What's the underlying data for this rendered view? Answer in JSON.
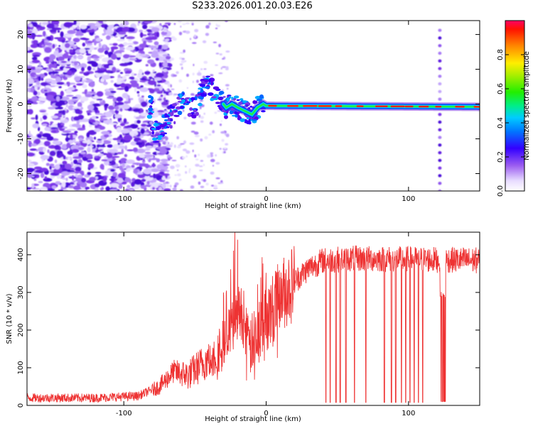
{
  "title": "S233.2026.001.20.03.E26",
  "chart_data": [
    {
      "type": "heatmap",
      "title": "S233.2026.001.20.03.E26",
      "xlabel": "Height of straight line (km)",
      "ylabel": "Frequency (Hz)",
      "xlim": [
        -168,
        150
      ],
      "ylim": [
        -25,
        24
      ],
      "xticks": [
        -100,
        0,
        100
      ],
      "yticks": [
        -20,
        -10,
        0,
        10,
        20
      ],
      "colorbar": {
        "label": "Normalized spectral amplitude",
        "range": [
          0.0,
          1.0
        ],
        "ticks": [
          "0.0",
          "0.2",
          "0.4",
          "0.6",
          "0.8"
        ]
      },
      "ridge": [
        {
          "x": -80,
          "y": -9
        },
        {
          "x": -72,
          "y": -6
        },
        {
          "x": -65,
          "y": -3
        },
        {
          "x": -58,
          "y": 1
        },
        {
          "x": -50,
          "y": -2
        },
        {
          "x": -45,
          "y": 4
        },
        {
          "x": -40,
          "y": 6
        },
        {
          "x": -36,
          "y": 2
        },
        {
          "x": -32,
          "y": 1
        },
        {
          "x": -28,
          "y": -1
        },
        {
          "x": -24,
          "y": 0
        },
        {
          "x": -20,
          "y": -1
        },
        {
          "x": -15,
          "y": -2
        },
        {
          "x": -10,
          "y": -3
        },
        {
          "x": -6,
          "y": -1
        },
        {
          "x": -2,
          "y": 0
        },
        {
          "x": 0,
          "y": -0.5
        },
        {
          "x": 150,
          "y": -0.8
        }
      ]
    },
    {
      "type": "line",
      "xlabel": "Height of straight line (km)",
      "ylabel": "SNR (10 * v/v)",
      "xlim": [
        -168,
        150
      ],
      "ylim": [
        0,
        460
      ],
      "xticks": [
        -100,
        0,
        100
      ],
      "yticks": [
        0,
        100,
        200,
        300,
        400
      ],
      "series": [
        {
          "name": "SNR",
          "color": "#ee3333",
          "envelope": [
            {
              "x": -168,
              "y": 20
            },
            {
              "x": -120,
              "y": 20
            },
            {
              "x": -90,
              "y": 25
            },
            {
              "x": -75,
              "y": 50
            },
            {
              "x": -65,
              "y": 90
            },
            {
              "x": -55,
              "y": 80
            },
            {
              "x": -45,
              "y": 110
            },
            {
              "x": -35,
              "y": 140
            },
            {
              "x": -25,
              "y": 200
            },
            {
              "x": -18,
              "y": 260
            },
            {
              "x": -12,
              "y": 150
            },
            {
              "x": -5,
              "y": 200
            },
            {
              "x": 0,
              "y": 230
            },
            {
              "x": 10,
              "y": 290
            },
            {
              "x": 20,
              "y": 330
            },
            {
              "x": 30,
              "y": 365
            },
            {
              "x": 40,
              "y": 385
            },
            {
              "x": 60,
              "y": 390
            },
            {
              "x": 150,
              "y": 385
            }
          ],
          "spikes": [
            {
              "x": -22,
              "y": 460
            },
            {
              "x": -20,
              "y": 440
            },
            {
              "x": -30,
              "y": 300
            }
          ],
          "dropouts": [
            42,
            45,
            49,
            52,
            56,
            62,
            70,
            83,
            88,
            91,
            95,
            98,
            101,
            104,
            107,
            110
          ],
          "low_segment": {
            "from": 122,
            "to": 126,
            "y": 290
          }
        }
      ]
    }
  ]
}
